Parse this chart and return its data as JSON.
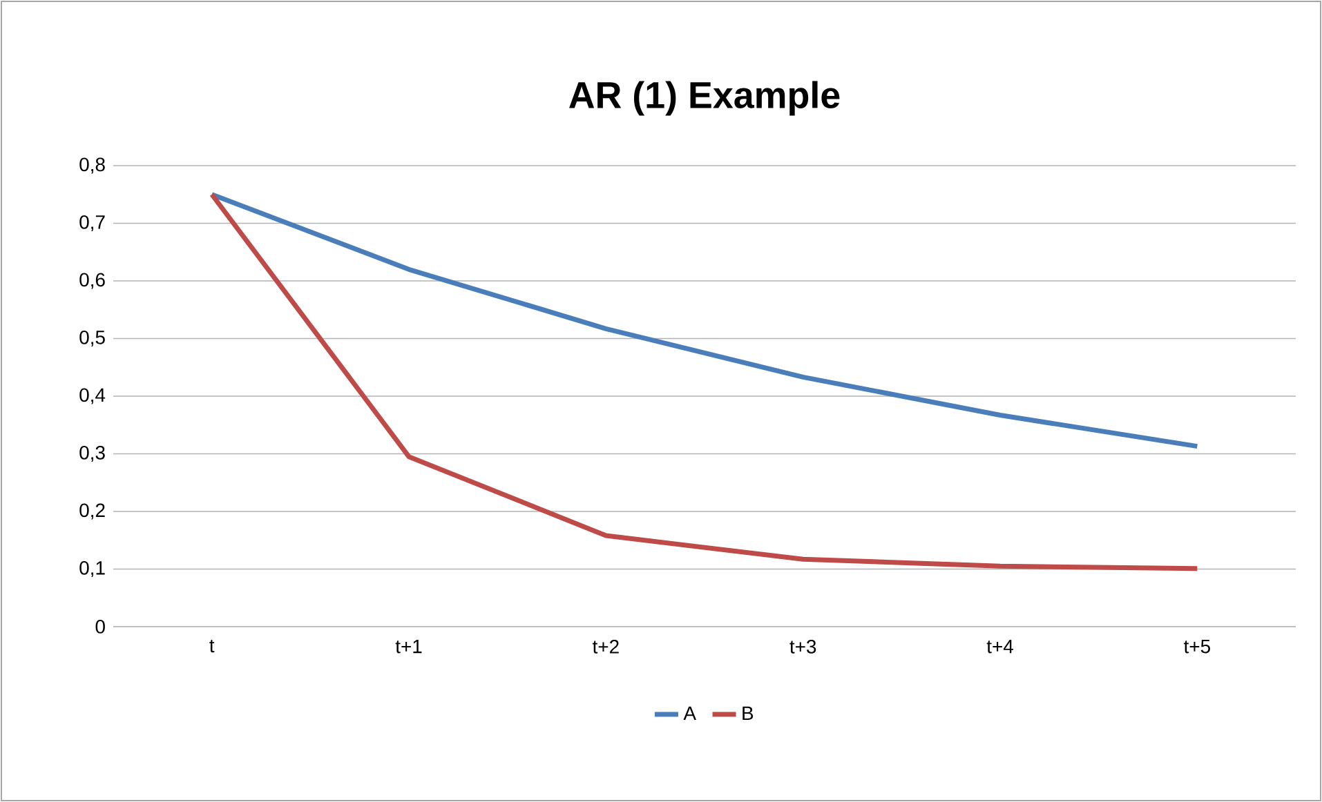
{
  "chart_data": {
    "type": "line",
    "title": "AR (1) Example",
    "categories": [
      "t",
      "t+1",
      "t+2",
      "t+3",
      "t+4",
      "t+5"
    ],
    "series": [
      {
        "name": "A",
        "color": "#4a7ebb",
        "values": [
          0.75,
          0.62,
          0.517,
          0.433,
          0.367,
          0.313
        ]
      },
      {
        "name": "B",
        "color": "#be4b48",
        "values": [
          0.75,
          0.295,
          0.158,
          0.117,
          0.105,
          0.101
        ]
      }
    ],
    "ylim": [
      0,
      0.8
    ],
    "yticks": [
      0,
      {
        "value": 0.1,
        "label": "0,1"
      },
      {
        "value": 0.2,
        "label": "0,2"
      },
      {
        "value": 0.3,
        "label": "0,3"
      },
      {
        "value": 0.4,
        "label": "0,4"
      },
      {
        "value": 0.5,
        "label": "0,5"
      },
      {
        "value": 0.6,
        "label": "0,6"
      },
      {
        "value": 0.7,
        "label": "0,7"
      },
      {
        "value": 0.8,
        "label": "0,8"
      }
    ],
    "grid": "y",
    "legend": "bottom",
    "marker": "none",
    "line_style": "solid"
  }
}
